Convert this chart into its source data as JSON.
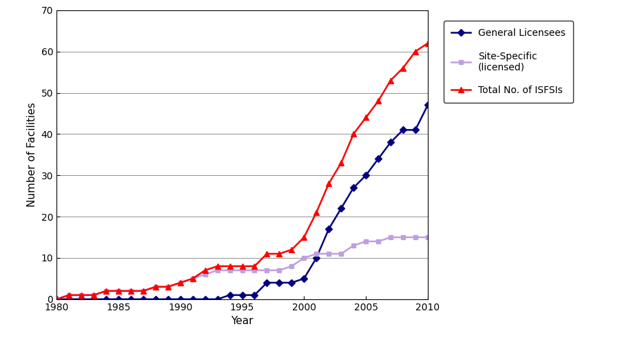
{
  "title": "",
  "xlabel": "Year",
  "ylabel": "Number of Facilities",
  "xlim": [
    1980,
    2010
  ],
  "ylim": [
    0,
    70
  ],
  "yticks": [
    0,
    10,
    20,
    30,
    40,
    50,
    60,
    70
  ],
  "xticks": [
    1980,
    1985,
    1990,
    1995,
    2000,
    2005,
    2010
  ],
  "general_licensees": {
    "years": [
      1980,
      1981,
      1982,
      1983,
      1984,
      1985,
      1986,
      1987,
      1988,
      1989,
      1990,
      1991,
      1992,
      1993,
      1994,
      1995,
      1996,
      1997,
      1998,
      1999,
      2000,
      2001,
      2002,
      2003,
      2004,
      2005,
      2006,
      2007,
      2008,
      2009,
      2010
    ],
    "values": [
      0,
      0,
      0,
      0,
      0,
      0,
      0,
      0,
      0,
      0,
      0,
      0,
      0,
      0,
      1,
      1,
      1,
      4,
      4,
      4,
      5,
      10,
      17,
      22,
      27,
      30,
      34,
      38,
      41,
      41,
      47
    ],
    "color": "#000080",
    "marker": "D",
    "label": "General Licensees"
  },
  "site_specific": {
    "years": [
      1980,
      1981,
      1982,
      1983,
      1984,
      1985,
      1986,
      1987,
      1988,
      1989,
      1990,
      1991,
      1992,
      1993,
      1994,
      1995,
      1996,
      1997,
      1998,
      1999,
      2000,
      2001,
      2002,
      2003,
      2004,
      2005,
      2006,
      2007,
      2008,
      2009,
      2010
    ],
    "values": [
      0,
      1,
      1,
      1,
      2,
      2,
      2,
      2,
      3,
      3,
      4,
      5,
      6,
      7,
      7,
      7,
      7,
      7,
      7,
      8,
      10,
      11,
      11,
      11,
      13,
      14,
      14,
      15,
      15,
      15,
      15
    ],
    "color": "#bf9fdf",
    "marker": "s",
    "label": "Site-Specific\n(licensed)"
  },
  "total_isfsis": {
    "years": [
      1980,
      1981,
      1982,
      1983,
      1984,
      1985,
      1986,
      1987,
      1988,
      1989,
      1990,
      1991,
      1992,
      1993,
      1994,
      1995,
      1996,
      1997,
      1998,
      1999,
      2000,
      2001,
      2002,
      2003,
      2004,
      2005,
      2006,
      2007,
      2008,
      2009,
      2010
    ],
    "values": [
      0,
      1,
      1,
      1,
      2,
      2,
      2,
      2,
      3,
      3,
      4,
      5,
      7,
      8,
      8,
      8,
      8,
      11,
      11,
      12,
      15,
      21,
      28,
      33,
      40,
      44,
      48,
      53,
      56,
      60,
      62
    ],
    "color": "#ff0000",
    "marker": "^",
    "label": "Total No. of ISFSIs"
  },
  "background_color": "#ffffff",
  "grid_color": "#808080",
  "figure_width": 9.13,
  "figure_height": 4.93,
  "dpi": 100
}
